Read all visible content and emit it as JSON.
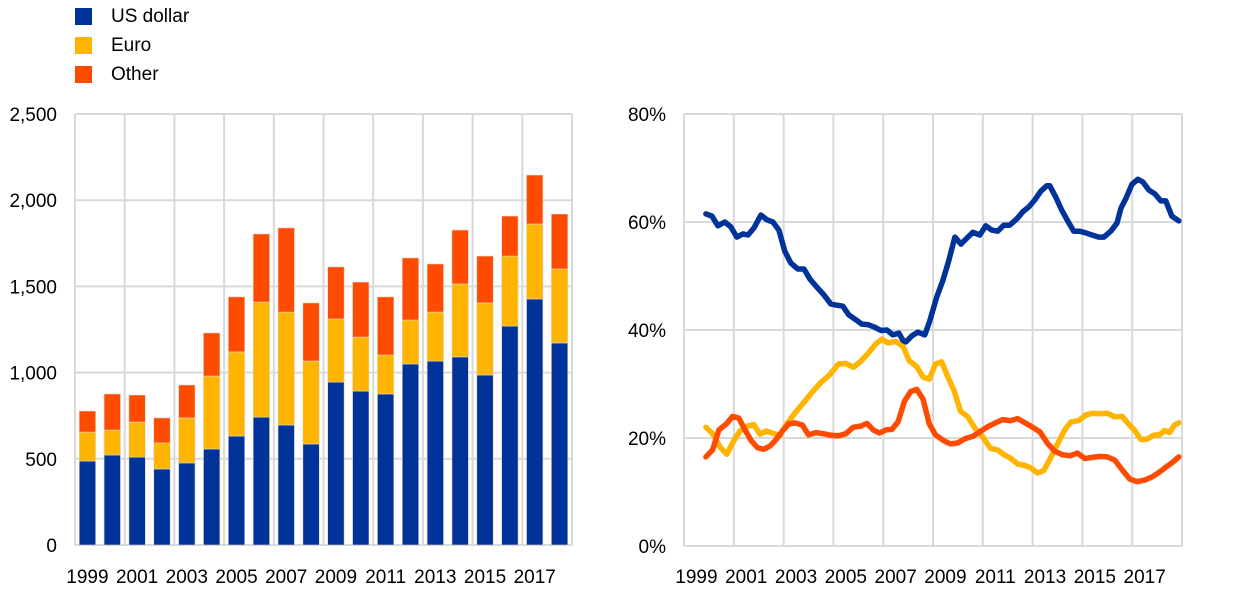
{
  "legend": [
    {
      "label": "US dollar",
      "color": "#003399"
    },
    {
      "label": "Euro",
      "color": "#FFB400"
    },
    {
      "label": "Other",
      "color": "#FF4B00"
    }
  ],
  "chart_data": [
    {
      "type": "bar",
      "stacked": true,
      "title": "",
      "xlabel": "",
      "ylabel": "",
      "ylim": [
        0,
        2500
      ],
      "yticks": [
        0,
        500,
        1000,
        1500,
        2000,
        2500
      ],
      "ytick_labels": [
        "0",
        "500",
        "1,000",
        "1,500",
        "2,000",
        "2,500"
      ],
      "xtick_labels": [
        "1999",
        "2001",
        "2003",
        "2005",
        "2007",
        "2009",
        "2011",
        "2013",
        "2015",
        "2017"
      ],
      "grid": true,
      "categories": [
        "1999",
        "2000",
        "2001",
        "2002",
        "2003",
        "2004",
        "2005",
        "2006",
        "2007",
        "2008",
        "2009",
        "2010",
        "2011",
        "2012",
        "2013",
        "2014",
        "2015",
        "2016",
        "2017",
        "2018"
      ],
      "series": [
        {
          "name": "US dollar",
          "color": "#003399",
          "values": [
            487,
            522,
            510,
            441,
            476,
            557,
            632,
            742,
            696,
            586,
            945,
            893,
            876,
            1050,
            1067,
            1091,
            986,
            1270,
            1427,
            1172
          ]
        },
        {
          "name": "Euro",
          "color": "#FFB400",
          "values": [
            168,
            145,
            203,
            151,
            261,
            423,
            488,
            667,
            655,
            481,
            366,
            313,
            226,
            255,
            284,
            423,
            418,
            406,
            435,
            429
          ]
        },
        {
          "name": "Other",
          "color": "#FF4B00",
          "values": [
            122,
            209,
            157,
            145,
            191,
            250,
            319,
            395,
            488,
            337,
            302,
            319,
            337,
            360,
            279,
            313,
            272,
            232,
            284,
            319
          ]
        }
      ]
    },
    {
      "type": "line",
      "title": "",
      "xlabel": "",
      "ylabel": "",
      "ylim": [
        0,
        80
      ],
      "xlim": [
        1999,
        2019
      ],
      "yticks": [
        0,
        20,
        40,
        60,
        80
      ],
      "ytick_labels": [
        "0%",
        "20%",
        "40%",
        "60%",
        "80%"
      ],
      "xtick_labels": [
        "1999",
        "2001",
        "2003",
        "2005",
        "2007",
        "2009",
        "2011",
        "2013",
        "2015",
        "2017"
      ],
      "grid": true,
      "series": [
        {
          "name": "US dollar",
          "color": "#003399",
          "x": [
            1999.88,
            2000.12,
            2000.36,
            2000.64,
            2000.88,
            2001.12,
            2001.37,
            2001.57,
            2001.81,
            2002.09,
            2002.33,
            2002.57,
            2002.81,
            2003.05,
            2003.29,
            2003.57,
            2003.82,
            2004.06,
            2004.34,
            2004.62,
            2004.9,
            2005.14,
            2005.38,
            2005.62,
            2005.9,
            2006.14,
            2006.38,
            2006.67,
            2006.91,
            2007.15,
            2007.39,
            2007.63,
            2007.79,
            2007.91,
            2008.15,
            2008.39,
            2008.67,
            2008.87,
            2009.15,
            2009.39,
            2009.63,
            2009.88,
            2010.12,
            2010.36,
            2010.6,
            2010.88,
            2011.12,
            2011.36,
            2011.6,
            2011.84,
            2012.08,
            2012.37,
            2012.61,
            2012.85,
            2013.09,
            2013.33,
            2013.57,
            2013.69,
            2013.93,
            2014.17,
            2014.41,
            2014.65,
            2014.9,
            2015.18,
            2015.38,
            2015.66,
            2015.86,
            2016.14,
            2016.39,
            2016.55,
            2016.75,
            2016.99,
            2017.23,
            2017.43,
            2017.67,
            2017.91,
            2018.15,
            2018.35,
            2018.59,
            2018.87
          ],
          "y": [
            61.5,
            61.1,
            59.3,
            60.0,
            59.1,
            57.2,
            57.8,
            57.6,
            58.9,
            61.3,
            60.4,
            60.0,
            58.5,
            54.6,
            52.4,
            51.3,
            51.3,
            49.4,
            47.9,
            46.5,
            44.8,
            44.6,
            44.4,
            42.8,
            41.9,
            41.1,
            41.0,
            40.5,
            39.9,
            40.0,
            39.1,
            39.4,
            38.1,
            37.8,
            38.9,
            39.6,
            39.1,
            41.7,
            46.1,
            49.1,
            52.8,
            57.2,
            55.9,
            57.0,
            58.1,
            57.6,
            59.3,
            58.5,
            58.3,
            59.4,
            59.4,
            60.6,
            61.9,
            62.8,
            64.1,
            65.7,
            66.7,
            66.7,
            64.6,
            62.2,
            60.2,
            58.3,
            58.3,
            57.9,
            57.6,
            57.2,
            57.2,
            58.3,
            59.8,
            62.6,
            64.4,
            67.0,
            67.9,
            67.4,
            65.9,
            65.2,
            63.9,
            63.9,
            61.1,
            60.2
          ]
        },
        {
          "name": "Euro",
          "color": "#FFB400",
          "x": [
            1999.88,
            2000.15,
            2000.45,
            2000.72,
            2001.0,
            2001.25,
            2001.55,
            2001.8,
            2002.05,
            2002.3,
            2002.55,
            2002.85,
            2003.1,
            2003.45,
            2003.8,
            2004.15,
            2004.5,
            2004.85,
            2005.2,
            2005.5,
            2005.8,
            2006.1,
            2006.4,
            2006.7,
            2006.95,
            2007.2,
            2007.5,
            2007.8,
            2008.05,
            2008.35,
            2008.6,
            2008.85,
            2009.1,
            2009.35,
            2009.6,
            2009.85,
            2010.1,
            2010.4,
            2010.7,
            2011.0,
            2011.3,
            2011.6,
            2011.85,
            2012.1,
            2012.4,
            2012.7,
            2012.95,
            2013.2,
            2013.45,
            2013.7,
            2014.0,
            2014.3,
            2014.55,
            2014.85,
            2015.15,
            2015.45,
            2015.75,
            2016.0,
            2016.3,
            2016.6,
            2016.85,
            2017.1,
            2017.35,
            2017.6,
            2017.85,
            2018.1,
            2018.3,
            2018.5,
            2018.7,
            2018.87
          ],
          "y": [
            22.0,
            20.8,
            18.3,
            17.0,
            19.5,
            21.3,
            22.2,
            22.5,
            20.7,
            21.3,
            20.9,
            20.5,
            22.4,
            24.6,
            26.5,
            28.5,
            30.3,
            31.7,
            33.7,
            33.8,
            33.1,
            34.2,
            35.7,
            37.4,
            38.3,
            37.6,
            37.9,
            36.9,
            34.3,
            33.2,
            31.3,
            30.9,
            33.7,
            34.1,
            31.3,
            28.7,
            25.0,
            23.9,
            21.7,
            20.2,
            18.1,
            17.8,
            16.9,
            16.3,
            15.2,
            14.9,
            14.4,
            13.5,
            14.0,
            16.1,
            18.9,
            21.6,
            23.0,
            23.2,
            24.3,
            24.6,
            24.5,
            24.6,
            23.9,
            24.0,
            22.6,
            21.4,
            19.7,
            19.8,
            20.5,
            20.6,
            21.4,
            21.0,
            22.4,
            22.8
          ]
        },
        {
          "name": "Other",
          "color": "#FF4B00",
          "x": [
            1999.88,
            2000.15,
            2000.4,
            2000.7,
            2000.95,
            2001.2,
            2001.45,
            2001.7,
            2001.95,
            2002.2,
            2002.45,
            2002.7,
            2002.95,
            2003.2,
            2003.45,
            2003.75,
            2004.0,
            2004.3,
            2004.6,
            2004.9,
            2005.2,
            2005.5,
            2005.8,
            2006.1,
            2006.35,
            2006.6,
            2006.85,
            2007.1,
            2007.35,
            2007.6,
            2007.85,
            2008.1,
            2008.35,
            2008.6,
            2008.85,
            2009.1,
            2009.4,
            2009.7,
            2010.0,
            2010.3,
            2010.6,
            2010.9,
            2011.2,
            2011.5,
            2011.8,
            2012.1,
            2012.4,
            2012.7,
            2013.0,
            2013.3,
            2013.6,
            2013.9,
            2014.2,
            2014.5,
            2014.8,
            2015.1,
            2015.4,
            2015.7,
            2016.0,
            2016.3,
            2016.6,
            2016.9,
            2017.2,
            2017.5,
            2017.8,
            2018.1,
            2018.35,
            2018.6,
            2018.87
          ],
          "y": [
            16.5,
            17.8,
            21.5,
            22.6,
            24.0,
            23.7,
            21.5,
            19.5,
            18.2,
            17.9,
            18.5,
            19.7,
            21.3,
            22.6,
            22.8,
            22.4,
            20.6,
            21.0,
            20.8,
            20.5,
            20.4,
            20.8,
            22.0,
            22.2,
            22.7,
            21.5,
            20.9,
            21.5,
            21.6,
            23.0,
            26.8,
            28.6,
            29.0,
            27.2,
            22.6,
            20.6,
            19.6,
            18.9,
            19.1,
            19.9,
            20.3,
            21.2,
            22.1,
            22.8,
            23.4,
            23.2,
            23.6,
            22.8,
            22.0,
            21.1,
            19.0,
            17.5,
            16.9,
            16.7,
            17.2,
            16.2,
            16.4,
            16.6,
            16.5,
            15.9,
            14.1,
            12.4,
            11.9,
            12.2,
            12.8,
            13.7,
            14.6,
            15.4,
            16.5
          ]
        }
      ]
    }
  ]
}
